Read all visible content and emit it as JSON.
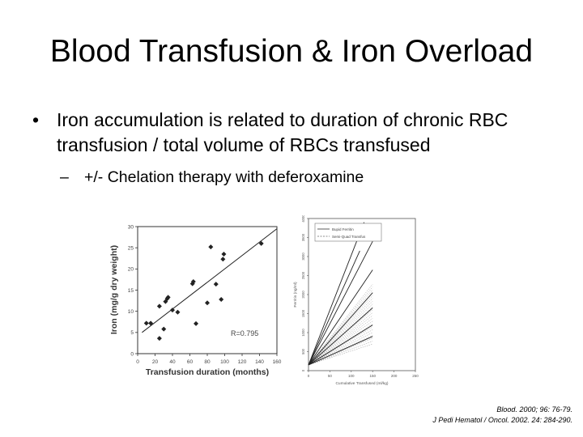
{
  "slide": {
    "title": "Blood Transfusion & Iron Overload",
    "bullet_symbol": "•",
    "bullet_text": "Iron accumulation is related to duration of chronic RBC transfusion / total volume of RBCs transfused",
    "sub_symbol": "–",
    "sub_text": "+/- Chelation therapy with deferoxamine",
    "citation_1": "Blood. 2000; 96: 76-79.",
    "citation_2": "J Pedi Hematol / Oncol. 2002. 24: 284-290."
  },
  "chart_data": [
    {
      "type": "scatter",
      "xlabel": "Transfusion duration (months)",
      "ylabel": "Iron (mg/g dry weight)",
      "xlim": [
        0,
        160
      ],
      "ylim": [
        0,
        30
      ],
      "x_ticks": [
        "0",
        "20",
        "40",
        "60",
        "80",
        "100",
        "120",
        "140",
        "160"
      ],
      "y_ticks": [
        "0",
        "5",
        "10",
        "15",
        "20",
        "25",
        "30"
      ],
      "annotation": "R=0.795",
      "points": [
        {
          "x": 10,
          "y": 7.2
        },
        {
          "x": 15,
          "y": 7.2
        },
        {
          "x": 25,
          "y": 3.6
        },
        {
          "x": 25,
          "y": 11.2
        },
        {
          "x": 30,
          "y": 5.8
        },
        {
          "x": 32,
          "y": 12.3
        },
        {
          "x": 34,
          "y": 13.0
        },
        {
          "x": 35,
          "y": 13.3
        },
        {
          "x": 40,
          "y": 10.3
        },
        {
          "x": 46,
          "y": 9.8
        },
        {
          "x": 63,
          "y": 16.5
        },
        {
          "x": 64,
          "y": 17.0
        },
        {
          "x": 67,
          "y": 7.1
        },
        {
          "x": 80,
          "y": 12.0
        },
        {
          "x": 84,
          "y": 25.2
        },
        {
          "x": 90,
          "y": 16.4
        },
        {
          "x": 96,
          "y": 12.8
        },
        {
          "x": 98,
          "y": 22.3
        },
        {
          "x": 99,
          "y": 23.5
        },
        {
          "x": 142,
          "y": 26.0
        }
      ],
      "trendline": {
        "x": [
          5,
          160
        ],
        "y": [
          5.0,
          29.5
        ]
      }
    },
    {
      "type": "line",
      "xlabel": "Cumulative Transfused (ml/kg)",
      "ylabel": "Ferritin (ng/ml)",
      "xlim": [
        0,
        250
      ],
      "ylim": [
        0,
        4000
      ],
      "x_ticks": [
        "0",
        "50",
        "100",
        "150",
        "200",
        "250"
      ],
      "y_ticks": [
        "0",
        "500",
        "1000",
        "1500",
        "2000",
        "2500",
        "3000",
        "3500",
        "4000"
      ],
      "legend": [
        "Bupid Ferritin",
        "Semi-Quad Transfus"
      ],
      "legend_position": "top",
      "series": [
        {
          "values": [
            [
              0,
              150
            ],
            [
              130,
              3900
            ]
          ]
        },
        {
          "values": [
            [
              0,
              150
            ],
            [
              120,
              3150
            ]
          ]
        },
        {
          "values": [
            [
              0,
              150
            ],
            [
              150,
              3400
            ]
          ]
        },
        {
          "values": [
            [
              0,
              150
            ],
            [
              150,
              2650
            ]
          ]
        },
        {
          "values": [
            [
              0,
              150
            ],
            [
              150,
              2050
            ]
          ]
        },
        {
          "values": [
            [
              0,
              150
            ],
            [
              150,
              1650
            ]
          ]
        },
        {
          "values": [
            [
              0,
              150
            ],
            [
              150,
              1200
            ]
          ]
        },
        {
          "values": [
            [
              0,
              150
            ],
            [
              150,
              900
            ]
          ]
        }
      ]
    }
  ]
}
